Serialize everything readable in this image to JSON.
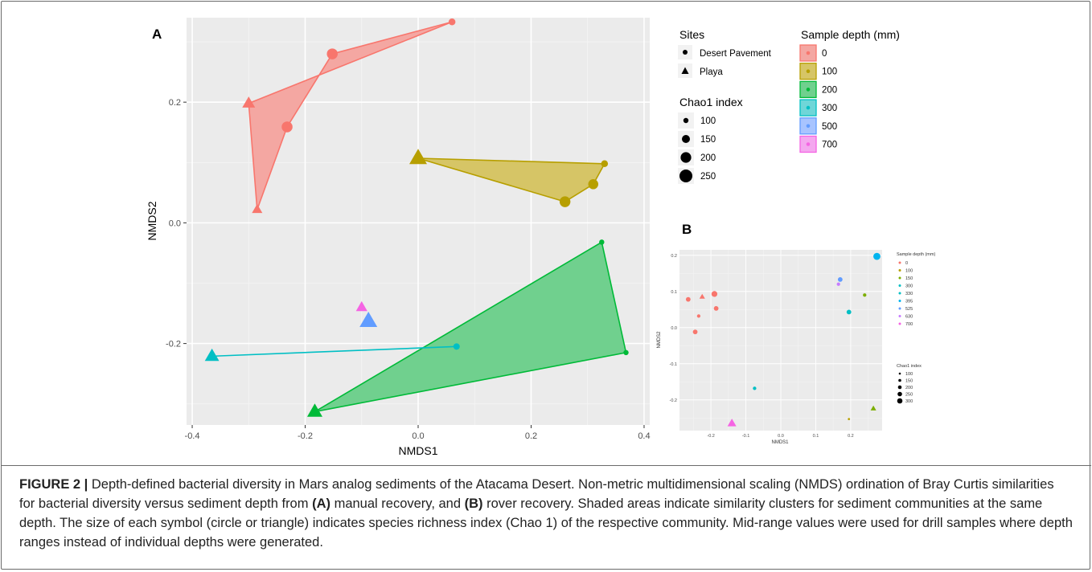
{
  "chart_data": [
    {
      "panel": "A",
      "type": "scatter",
      "xlabel": "NMDS1",
      "ylabel": "NMDS2",
      "xlim": [
        -0.41,
        0.41
      ],
      "ylim": [
        -0.335,
        0.34
      ],
      "xticks": [
        -0.4,
        -0.2,
        0.0,
        0.2,
        0.4
      ],
      "xtick_labels": [
        "-0.4",
        "-0.2",
        "0.0",
        "0.2",
        "0.4"
      ],
      "yticks": [
        -0.2,
        0.0,
        0.2
      ],
      "ytick_labels": [
        "-0.2",
        "0.0",
        "0.2"
      ],
      "grid": true,
      "points": [
        {
          "x": 0.06,
          "y": 0.333,
          "depth": "0",
          "site": "Desert Pavement",
          "chao1": 100
        },
        {
          "x": -0.152,
          "y": 0.28,
          "depth": "0",
          "site": "Desert Pavement",
          "chao1": 200
        },
        {
          "x": -0.232,
          "y": 0.159,
          "depth": "0",
          "site": "Desert Pavement",
          "chao1": 200
        },
        {
          "x": -0.3,
          "y": 0.198,
          "depth": "0",
          "site": "Playa",
          "chao1": 150
        },
        {
          "x": -0.285,
          "y": 0.022,
          "depth": "0",
          "site": "Playa",
          "chao1": 100
        },
        {
          "x": 0.0,
          "y": 0.107,
          "depth": "100",
          "site": "Playa",
          "chao1": 250
        },
        {
          "x": 0.33,
          "y": 0.098,
          "depth": "100",
          "site": "Desert Pavement",
          "chao1": 100
        },
        {
          "x": 0.31,
          "y": 0.064,
          "depth": "100",
          "site": "Desert Pavement",
          "chao1": 180
        },
        {
          "x": 0.26,
          "y": 0.035,
          "depth": "100",
          "site": "Desert Pavement",
          "chao1": 200
        },
        {
          "x": 0.325,
          "y": -0.032,
          "depth": "200",
          "site": "Desert Pavement",
          "chao1": 60
        },
        {
          "x": 0.368,
          "y": -0.215,
          "depth": "200",
          "site": "Desert Pavement",
          "chao1": 60
        },
        {
          "x": -0.183,
          "y": -0.313,
          "depth": "200",
          "site": "Playa",
          "chao1": 200
        },
        {
          "x": 0.068,
          "y": -0.205,
          "depth": "300",
          "site": "Desert Pavement",
          "chao1": 90
        },
        {
          "x": -0.365,
          "y": -0.221,
          "depth": "300",
          "site": "Playa",
          "chao1": 180
        },
        {
          "x": -0.088,
          "y": -0.163,
          "depth": "500",
          "site": "Playa",
          "chao1": 250
        },
        {
          "x": -0.1,
          "y": -0.14,
          "depth": "700",
          "site": "Playa",
          "chao1": 120
        }
      ],
      "hulls": [
        {
          "depth": "0",
          "points": [
            [
              0.06,
              0.333
            ],
            [
              -0.152,
              0.28
            ],
            [
              -0.232,
              0.159
            ],
            [
              -0.285,
              0.022
            ],
            [
              -0.3,
              0.198
            ]
          ]
        },
        {
          "depth": "100",
          "points": [
            [
              0.0,
              0.107
            ],
            [
              0.33,
              0.098
            ],
            [
              0.31,
              0.064
            ],
            [
              0.26,
              0.035
            ]
          ]
        },
        {
          "depth": "200",
          "points": [
            [
              0.325,
              -0.032
            ],
            [
              0.368,
              -0.215
            ],
            [
              -0.183,
              -0.313
            ]
          ]
        },
        {
          "depth": "300",
          "points": [
            [
              -0.365,
              -0.221
            ],
            [
              0.068,
              -0.205
            ]
          ]
        }
      ]
    },
    {
      "panel": "B",
      "type": "scatter",
      "xlabel": "NMDS1",
      "ylabel": "NMDS2",
      "xlim": [
        -0.29,
        0.29
      ],
      "ylim": [
        -0.285,
        0.215
      ],
      "xticks": [
        -0.2,
        -0.1,
        0.0,
        0.1,
        0.2
      ],
      "xtick_labels": [
        "-0.2",
        "-0.1",
        "0.0",
        "0.1",
        "0.2"
      ],
      "yticks": [
        -0.2,
        -0.1,
        0.0,
        0.1,
        0.2
      ],
      "ytick_labels": [
        "-0.2",
        "-0.1",
        "0.0",
        "0.1",
        "0.2"
      ],
      "grid": true,
      "points": [
        {
          "x": -0.265,
          "y": 0.078,
          "depth": "0",
          "site": "Desert Pavement",
          "chao1": 200
        },
        {
          "x": -0.235,
          "y": 0.032,
          "depth": "0",
          "site": "Desert Pavement",
          "chao1": 150
        },
        {
          "x": -0.245,
          "y": -0.012,
          "depth": "0",
          "site": "Desert Pavement",
          "chao1": 200
        },
        {
          "x": -0.19,
          "y": 0.093,
          "depth": "0",
          "site": "Desert Pavement",
          "chao1": 250
        },
        {
          "x": -0.185,
          "y": 0.053,
          "depth": "0",
          "site": "Desert Pavement",
          "chao1": 200
        },
        {
          "x": -0.225,
          "y": 0.085,
          "depth": "0",
          "site": "Playa",
          "chao1": 150
        },
        {
          "x": 0.195,
          "y": -0.253,
          "depth": "100",
          "site": "Desert Pavement",
          "chao1": 100
        },
        {
          "x": 0.24,
          "y": 0.09,
          "depth": "150",
          "site": "Desert Pavement",
          "chao1": 150
        },
        {
          "x": 0.265,
          "y": -0.224,
          "depth": "150",
          "site": "Playa",
          "chao1": 150
        },
        {
          "x": -0.075,
          "y": -0.168,
          "depth": "300",
          "site": "Desert Pavement",
          "chao1": 150
        },
        {
          "x": 0.195,
          "y": 0.043,
          "depth": "330",
          "site": "Desert Pavement",
          "chao1": 200
        },
        {
          "x": 0.275,
          "y": 0.197,
          "depth": "395",
          "site": "Desert Pavement",
          "chao1": 300
        },
        {
          "x": 0.17,
          "y": 0.133,
          "depth": "525",
          "site": "Desert Pavement",
          "chao1": 200
        },
        {
          "x": 0.165,
          "y": 0.12,
          "depth": "630",
          "site": "Desert Pavement",
          "chao1": 150
        },
        {
          "x": -0.14,
          "y": -0.265,
          "depth": "700",
          "site": "Playa",
          "chao1": 250
        }
      ]
    }
  ],
  "figure": {
    "panel_a_label": "A",
    "panel_b_label": "B",
    "legend_a": {
      "sites_title": "Sites",
      "sites": [
        "Desert Pavement",
        "Playa"
      ],
      "chao_title": "Chao1 index",
      "chao_values": [
        "100",
        "150",
        "200",
        "250"
      ],
      "depth_title": "Sample depth (mm)",
      "depths": [
        "0",
        "100",
        "200",
        "300",
        "500",
        "700"
      ]
    },
    "legend_b": {
      "depth_title": "Sample depth (mm)",
      "depths": [
        "0",
        "100",
        "150",
        "300",
        "330",
        "395",
        "525",
        "630",
        "700"
      ],
      "chao_title": "Chao1 index",
      "chao_values": [
        "100",
        "150",
        "200",
        "250",
        "300"
      ]
    },
    "colors": {
      "0": "#f8766d",
      "100": "#b79f00",
      "150": "#7cae00",
      "200": "#00ba38",
      "300": "#00bfc4",
      "330": "#00bfc4",
      "395": "#00b4ef",
      "500": "#619cff",
      "525": "#619cff",
      "630": "#c77cff",
      "700": "#f564e3"
    },
    "hull_fill": {
      "0": "#f4a7a2",
      "100": "#d6c566",
      "200": "#70d08e"
    },
    "panel_background": "#ebebeb"
  },
  "caption": {
    "label": "FIGURE 2 |",
    "text_1": " Depth-defined bacterial diversity in Mars analog sediments of the Atacama Desert. Non-metric multidimensional scaling (NMDS) ordination of Bray Curtis similarities for bacterial diversity versus sediment depth from ",
    "bold_a": "(A)",
    "text_2": " manual recovery, and ",
    "bold_b": "(B)",
    "text_3": " rover recovery. Shaded areas indicate similarity clusters for sediment communities at the same depth. The size of each symbol (circle or triangle) indicates species richness index (Chao 1) of the respective community. Mid-range values were used for drill samples where depth ranges instead of individual depths were generated."
  }
}
